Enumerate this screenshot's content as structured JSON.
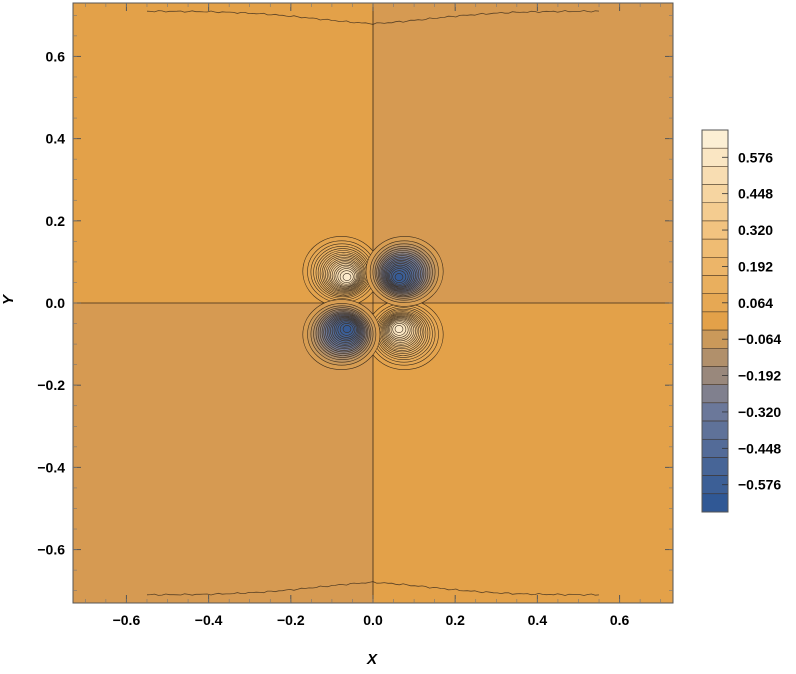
{
  "chart_data": {
    "type": "contour",
    "title": "",
    "xlabel": "X",
    "ylabel": "Y",
    "xlim": [
      -0.73,
      0.73
    ],
    "ylim": [
      -0.73,
      0.73
    ],
    "x_ticks": [
      -0.6,
      -0.4,
      -0.2,
      0.0,
      0.2,
      0.4,
      0.6
    ],
    "y_ticks": [
      -0.6,
      -0.4,
      -0.2,
      0.0,
      0.2,
      0.4,
      0.6
    ],
    "x_tick_labels": [
      "−0.6",
      "−0.4",
      "−0.2",
      "0.0",
      "0.2",
      "0.4",
      "0.6"
    ],
    "y_tick_labels": [
      "−0.6",
      "−0.4",
      "−0.2",
      "0.0",
      "0.2",
      "0.4",
      "0.6"
    ],
    "features": [
      {
        "kind": "maximum",
        "x": -0.063,
        "y": 0.063,
        "value": 0.62
      },
      {
        "kind": "maximum",
        "x": 0.063,
        "y": -0.063,
        "value": 0.62
      },
      {
        "kind": "minimum",
        "x": 0.063,
        "y": 0.063,
        "value": -0.62
      },
      {
        "kind": "minimum",
        "x": -0.063,
        "y": -0.063,
        "value": -0.62
      }
    ],
    "contour_step": 0.032,
    "colorbar": {
      "range": [
        -0.672,
        0.672
      ],
      "levels": 21,
      "tick_values": [
        0.576,
        0.448,
        0.32,
        0.192,
        0.064,
        -0.064,
        -0.192,
        -0.32,
        -0.448,
        -0.576
      ],
      "tick_labels": [
        "0.576",
        "0.448",
        "0.320",
        "0.192",
        "0.064",
        "−0.064",
        "−0.192",
        "−0.320",
        "−0.448",
        "−0.576"
      ],
      "colors": {
        "low": "#2a5595",
        "mid_low": "#6e7a9a",
        "zero": "#e3a149",
        "mid_high": "#f1c17b",
        "high": "#fdf3dc"
      }
    },
    "background_positive": "#e3a149",
    "background_negative": "#d69a52"
  }
}
